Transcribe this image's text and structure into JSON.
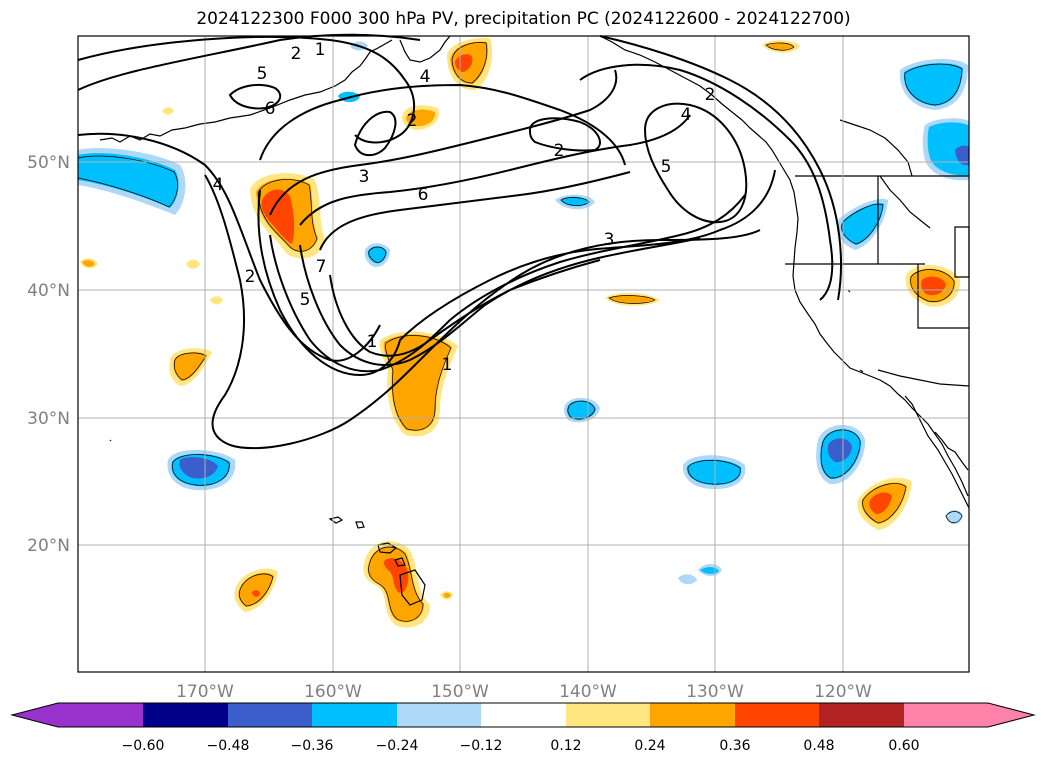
{
  "title": "2024122300 F000 300 hPa PV, precipitation PC (2024122600 - 2024122700)",
  "lat_labels": [
    "50°N",
    "40°N",
    "30°N",
    "20°N"
  ],
  "lon_labels": [
    "170°W",
    "160°W",
    "150°W",
    "140°W",
    "130°W",
    "120°W"
  ],
  "colorbar": {
    "tick_labels": [
      "−0.60",
      "−0.48",
      "−0.36",
      "−0.24",
      "−0.12",
      "0.12",
      "0.24",
      "0.36",
      "0.48",
      "0.60"
    ],
    "colors": [
      "#9932cc",
      "#00008b",
      "#3a5fcd",
      "#00bfff",
      "#add8f7",
      "#ffffff",
      "#ffe680",
      "#ffa500",
      "#ff4500",
      "#b22222",
      "#ff82ab",
      "#ff82ab"
    ]
  },
  "pv_contour_labels": [
    "2",
    "5",
    "6",
    "4",
    "2",
    "5",
    "3",
    "6",
    "4",
    "2",
    "2",
    "5",
    "3",
    "1",
    "1",
    "1",
    "7",
    "4",
    "2"
  ],
  "colors": {
    "orange": "#ffa500",
    "yellow": "#ffe680",
    "red": "#ff4500",
    "cyan": "#00bfff",
    "light_blue": "#add8f7",
    "royal": "#3a5fcd",
    "grid": "#b0b0b0",
    "axis_label": "#808080"
  }
}
